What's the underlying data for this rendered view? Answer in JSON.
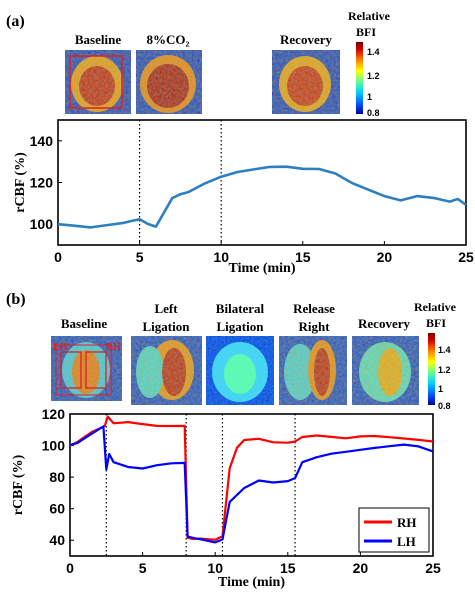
{
  "colors": {
    "line_a": "#2e7fc0",
    "rh": "#ff0000",
    "lh": "#0000ff",
    "roi_box": "#e02020",
    "colormap": [
      "#0000a0",
      "#0060ff",
      "#00d0ff",
      "#60ff90",
      "#ffff00",
      "#ff8000",
      "#d00000",
      "#7a0000"
    ]
  },
  "panel_a": {
    "label": "(a)",
    "image_labels": [
      "Baseline",
      "8%CO₂",
      "Recovery"
    ],
    "colorbar": {
      "title_1": "Relative",
      "title_2": "BFI",
      "ticks": [
        "1.4",
        "1.2",
        "1",
        "0.8"
      ]
    }
  },
  "panel_b": {
    "label": "(b)",
    "image_labels": [
      {
        "line1": "Baseline",
        "line2": ""
      },
      {
        "line1": "Left",
        "line2": "Ligation"
      },
      {
        "line1": "Bilateral",
        "line2": "Ligation"
      },
      {
        "line1": "Release",
        "line2": "Right"
      },
      {
        "line1": "Recovery",
        "line2": ""
      }
    ],
    "roi_labels": [
      "LH",
      "RH"
    ],
    "colorbar": {
      "title_1": "Relative",
      "title_2": "BFI",
      "ticks": [
        "1.4",
        "1.2",
        "1",
        "0.8"
      ]
    }
  },
  "chart_data": [
    {
      "type": "line",
      "xlabel": "Time (min)",
      "ylabel": "rCBF (%)",
      "xlim": [
        0,
        25
      ],
      "ylim": [
        90,
        150
      ],
      "xticks": [
        0,
        5,
        10,
        15,
        20,
        25
      ],
      "yticks": [
        100,
        120,
        140
      ],
      "vlines": [
        5,
        10
      ],
      "grid": false,
      "series": [
        {
          "x": [
            0,
            1,
            2,
            3,
            4,
            4.5,
            5,
            5.5,
            6,
            6.5,
            7,
            7.5,
            8,
            9,
            10,
            11,
            12,
            13,
            14,
            15,
            16,
            17,
            17.5,
            18,
            19,
            20,
            21,
            22,
            23,
            24,
            24.5,
            25
          ],
          "y": [
            100,
            99,
            98,
            99,
            100,
            101,
            102,
            100,
            99,
            106,
            113,
            115,
            116,
            120,
            123,
            125,
            126,
            127,
            127,
            126,
            126,
            124,
            122,
            120,
            117,
            114,
            112,
            114,
            113,
            111,
            112,
            109
          ]
        }
      ]
    },
    {
      "type": "line",
      "xlabel": "Time (min)",
      "ylabel": "rCBF (%)",
      "xlim": [
        0,
        25
      ],
      "ylim": [
        30,
        120
      ],
      "xticks": [
        0,
        5,
        10,
        15,
        20,
        25
      ],
      "yticks": [
        40,
        60,
        80,
        100,
        120
      ],
      "vlines": [
        2.5,
        8,
        10.5,
        15.5
      ],
      "legend": "bottom-right",
      "grid": false,
      "series": [
        {
          "name": "RH",
          "x": [
            0,
            0.5,
            1,
            1.5,
            2,
            2.4,
            2.6,
            3,
            4,
            5,
            6,
            7,
            7.9,
            8.1,
            8.5,
            9,
            10,
            10.5,
            11,
            11.5,
            12,
            13,
            14,
            15,
            15.5,
            16,
            17,
            18,
            19,
            20,
            21,
            22,
            23,
            24,
            25
          ],
          "y": [
            100,
            102,
            105,
            108,
            110,
            112,
            118,
            114,
            115,
            114,
            113,
            113,
            113,
            42,
            41,
            41,
            40,
            42,
            85,
            98,
            103,
            104,
            102,
            102,
            103,
            106,
            107,
            106,
            105,
            106,
            106,
            105,
            104,
            103,
            102
          ]
        },
        {
          "name": "LH",
          "x": [
            0,
            0.5,
            1,
            1.5,
            2,
            2.3,
            2.5,
            2.7,
            3,
            4,
            5,
            6,
            7,
            7.9,
            8.1,
            8.5,
            9,
            10,
            10.5,
            11,
            12,
            13,
            14,
            15,
            15.5,
            16,
            17,
            18,
            19,
            20,
            21,
            22,
            23,
            24,
            25
          ],
          "y": [
            100,
            101,
            104,
            107,
            110,
            112,
            85,
            95,
            90,
            87,
            86,
            88,
            89,
            89,
            42,
            41,
            40,
            38,
            40,
            64,
            73,
            78,
            77,
            78,
            80,
            90,
            93,
            95,
            96,
            97,
            98,
            99,
            100,
            99,
            96
          ]
        }
      ]
    }
  ]
}
